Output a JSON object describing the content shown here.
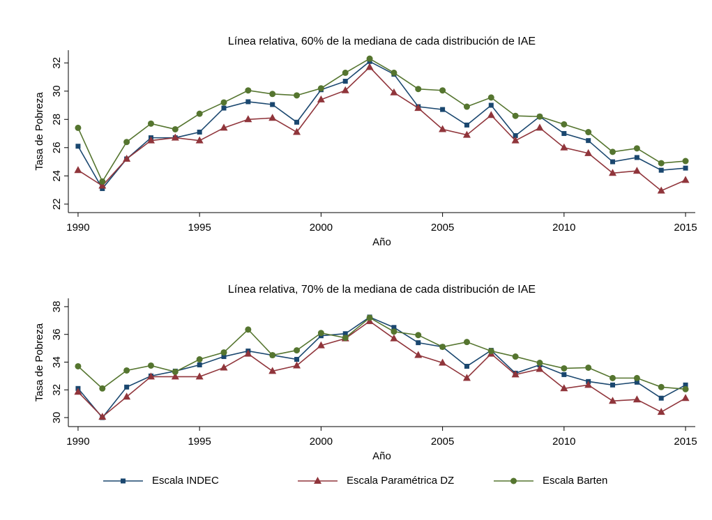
{
  "chart_data": [
    {
      "type": "line",
      "title": "Línea relativa, 60% de la mediana de cada distribución de IAE",
      "x_label": "Año",
      "y_label": "Tasa de Pobreza",
      "x": [
        1990,
        1991,
        1992,
        1993,
        1994,
        1995,
        1996,
        1997,
        1998,
        1999,
        2000,
        2001,
        2002,
        2003,
        2004,
        2005,
        2006,
        2007,
        2008,
        2009,
        2010,
        2011,
        2012,
        2013,
        2014,
        2015
      ],
      "xlim": [
        1989.6,
        2015.4
      ],
      "xticks": [
        1990,
        1995,
        2000,
        2005,
        2010,
        2015
      ],
      "ylim": [
        21.4,
        32.9
      ],
      "yticks": [
        22,
        24,
        26,
        28,
        30,
        32
      ],
      "grid": false,
      "series": [
        {
          "name": "Escala INDEC",
          "color": "#1a476f",
          "marker": "square",
          "values": [
            26.1,
            23.1,
            25.2,
            26.7,
            26.7,
            27.1,
            28.8,
            29.25,
            29.05,
            27.8,
            30.1,
            30.7,
            32.1,
            31.2,
            28.9,
            28.7,
            27.6,
            29.0,
            26.85,
            28.2,
            27.0,
            26.5,
            25.0,
            25.3,
            24.4,
            24.55
          ]
        },
        {
          "name": "Escala Paramétrica DZ",
          "color": "#90353b",
          "marker": "triangle",
          "values": [
            24.4,
            23.3,
            25.2,
            26.5,
            26.7,
            26.5,
            27.4,
            28.0,
            28.1,
            27.1,
            29.4,
            30.05,
            31.7,
            29.9,
            28.8,
            27.3,
            26.9,
            28.3,
            26.5,
            27.4,
            26.0,
            25.6,
            24.2,
            24.35,
            22.95,
            23.7
          ]
        },
        {
          "name": "Escala Barten",
          "color": "#55752f",
          "marker": "circle",
          "values": [
            27.4,
            23.6,
            26.4,
            27.7,
            27.3,
            28.4,
            29.2,
            30.05,
            29.8,
            29.7,
            30.2,
            31.3,
            32.3,
            31.3,
            30.15,
            30.05,
            28.9,
            29.55,
            28.25,
            28.2,
            27.65,
            27.1,
            25.7,
            25.95,
            24.9,
            25.05
          ]
        }
      ]
    },
    {
      "type": "line",
      "title": "Línea relativa, 70% de la mediana de cada distribución de IAE",
      "x_label": "Año",
      "y_label": "Tasa de Pobreza",
      "x": [
        1990,
        1991,
        1992,
        1993,
        1994,
        1995,
        1996,
        1997,
        1998,
        1999,
        2000,
        2001,
        2002,
        2003,
        2004,
        2005,
        2006,
        2007,
        2008,
        2009,
        2010,
        2011,
        2012,
        2013,
        2014,
        2015
      ],
      "xlim": [
        1989.6,
        2015.4
      ],
      "xticks": [
        1990,
        1995,
        2000,
        2005,
        2010,
        2015
      ],
      "ylim": [
        29.35,
        38.6
      ],
      "yticks": [
        30,
        32,
        34,
        36,
        38
      ],
      "grid": false,
      "series": [
        {
          "color": "#1a476f",
          "marker": "square",
          "values": [
            32.1,
            30.0,
            32.2,
            33.0,
            33.35,
            33.8,
            34.4,
            34.8,
            34.5,
            34.2,
            35.9,
            36.05,
            37.25,
            36.5,
            35.4,
            35.1,
            33.7,
            34.85,
            33.2,
            33.8,
            33.1,
            32.6,
            32.35,
            32.55,
            31.4,
            32.35
          ]
        },
        {
          "color": "#90353b",
          "marker": "triangle",
          "values": [
            31.85,
            30.05,
            31.5,
            32.95,
            32.95,
            32.95,
            33.6,
            34.6,
            33.35,
            33.75,
            35.2,
            35.7,
            36.95,
            35.7,
            34.5,
            33.95,
            32.85,
            34.6,
            33.1,
            33.5,
            32.1,
            32.35,
            31.2,
            31.3,
            30.4,
            31.4
          ]
        },
        {
          "color": "#55752f",
          "marker": "circle",
          "values": [
            33.7,
            32.1,
            33.4,
            33.75,
            33.3,
            34.2,
            34.7,
            36.35,
            34.5,
            34.85,
            36.1,
            35.75,
            37.2,
            36.2,
            35.95,
            35.1,
            35.45,
            34.8,
            34.4,
            33.95,
            33.55,
            33.6,
            32.85,
            32.85,
            32.2,
            32.05
          ]
        }
      ]
    }
  ]
}
